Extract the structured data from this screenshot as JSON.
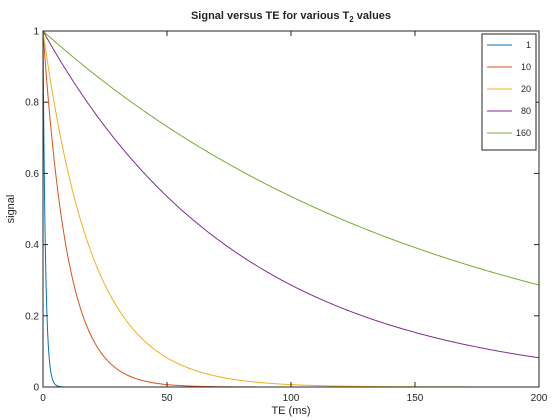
{
  "chart_data": {
    "type": "line",
    "title_main": "Signal versus TE for various T",
    "title_sub": "2",
    "title_tail": " values",
    "xlabel": "TE (ms)",
    "ylabel": "signal",
    "xlim": [
      0,
      200
    ],
    "ylim": [
      0,
      1
    ],
    "x_ticks": [
      0,
      50,
      100,
      150,
      200
    ],
    "y_ticks": [
      0,
      0.2,
      0.4,
      0.6,
      0.8,
      1
    ],
    "x_tick_labels": [
      "0",
      "50",
      "100",
      "150",
      "200"
    ],
    "y_tick_labels": [
      "0",
      "0.2",
      "0.4",
      "0.6",
      "0.8",
      "1"
    ],
    "grid": false,
    "legend_position": "top-right",
    "x_start": 0,
    "x_end": 200,
    "model": "exp(-TE/T2)",
    "series": [
      {
        "name": "1",
        "t2": 1,
        "color": "#0072bd",
        "x_end": 10
      },
      {
        "name": "10",
        "t2": 10,
        "color": "#d95319",
        "x_end": 200
      },
      {
        "name": "20",
        "t2": 20,
        "color": "#edb120",
        "x_end": 200
      },
      {
        "name": "80",
        "t2": 80,
        "color": "#7e2f8e",
        "x_end": 200
      },
      {
        "name": "160",
        "t2": 160,
        "color": "#77ac30",
        "x_end": 200
      }
    ]
  }
}
